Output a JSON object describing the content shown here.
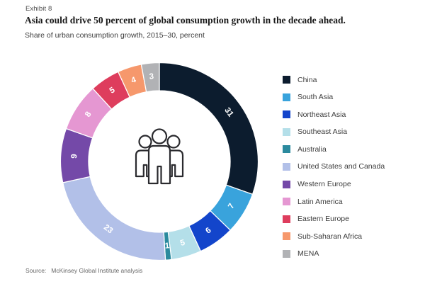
{
  "header": {
    "exhibit": "Exhibit 8",
    "title": "Asia could drive 50 percent of global consumption growth in the decade ahead.",
    "subtitle": "Share of urban consumption growth, 2015–30, percent"
  },
  "footer": {
    "source_label": "Source:",
    "source_text": "McKinsey Global Institute analysis"
  },
  "chart_data": {
    "type": "pie",
    "style": "donut",
    "unit": "percent",
    "title": "Asia could drive 50 percent of global consumption growth in the decade ahead.",
    "subtitle": "Share of urban consumption growth, 2015–30, percent",
    "legend_position": "right",
    "start_angle": "top",
    "direction": "clockwise",
    "center_icon": "people-group-icon",
    "segments": [
      {
        "label": "China",
        "value": 31,
        "color": "#0c1c2e"
      },
      {
        "label": "South Asia",
        "value": 7,
        "color": "#39a3dc"
      },
      {
        "label": "Northeast Asia",
        "value": 6,
        "color": "#1345cb"
      },
      {
        "label": "Southeast Asia",
        "value": 5,
        "color": "#b4dfe9"
      },
      {
        "label": "Australia",
        "value": 1,
        "color": "#2b8a9e"
      },
      {
        "label": "United States and Canada",
        "value": 23,
        "color": "#b2c0e8"
      },
      {
        "label": "Western Europe",
        "value": 9,
        "color": "#7449a8"
      },
      {
        "label": "Latin America",
        "value": 8,
        "color": "#e597d2"
      },
      {
        "label": "Eastern Europe",
        "value": 5,
        "color": "#de3d5d"
      },
      {
        "label": "Sub-Saharan Africa",
        "value": 4,
        "color": "#f6986c"
      },
      {
        "label": "MENA",
        "value": 3,
        "color": "#b1b2b5"
      }
    ]
  }
}
